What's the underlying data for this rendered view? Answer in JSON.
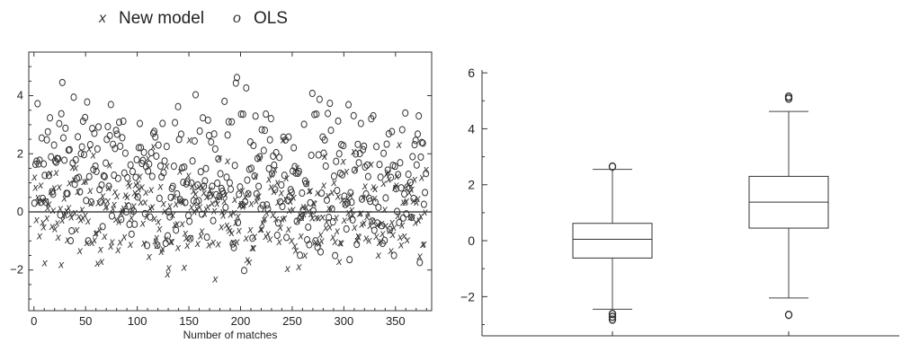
{
  "legend": {
    "items": [
      {
        "symbol": "x",
        "label": "New model"
      },
      {
        "symbol": "o",
        "label": "OLS"
      }
    ]
  },
  "chart_data": [
    {
      "type": "scatter",
      "title": "",
      "xlabel": "Number of matches",
      "ylabel": "",
      "xlim": [
        -5,
        385
      ],
      "ylim": [
        -3.4,
        5.5
      ],
      "xticks": [
        0,
        50,
        100,
        150,
        200,
        250,
        300,
        350
      ],
      "yticks": [
        -2,
        0,
        2,
        4
      ],
      "reference_line_y": 0,
      "series": [
        {
          "name": "New model",
          "marker": "x",
          "x_range": [
            0,
            380
          ],
          "approx_range": [
            -2.7,
            2.6
          ],
          "approx_mean": 0.0,
          "approx_sd": 0.9,
          "count": 380
        },
        {
          "name": "OLS",
          "marker": "o",
          "x_range": [
            0,
            380
          ],
          "approx_range": [
            -2.7,
            5.2
          ],
          "approx_mean": 1.3,
          "approx_sd": 1.3,
          "count": 380
        }
      ]
    },
    {
      "type": "box",
      "title": "",
      "xlabel": "",
      "ylabel": "",
      "ylim": [
        -3.4,
        6.1
      ],
      "yticks": [
        -2,
        0,
        2,
        4,
        6
      ],
      "boxes": [
        {
          "q1": -0.62,
          "median": 0.05,
          "q3": 0.62,
          "whisker_low": -2.45,
          "whisker_high": 2.55,
          "outliers": [
            2.65,
            -2.62,
            -2.72,
            -2.82
          ]
        },
        {
          "q1": 0.45,
          "median": 1.38,
          "q3": 2.3,
          "whisker_low": -2.05,
          "whisker_high": 4.62,
          "outliers": [
            5.08,
            5.15,
            -2.65
          ]
        }
      ]
    }
  ]
}
